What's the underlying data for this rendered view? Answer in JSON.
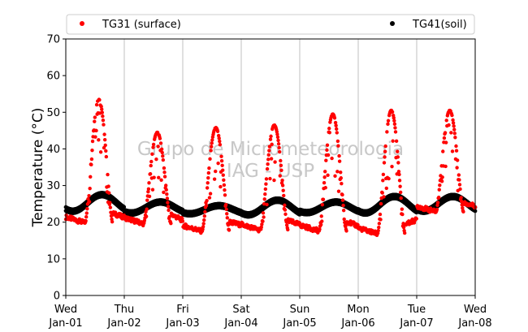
{
  "chart_data": {
    "type": "scatter",
    "title": "",
    "xlabel": "",
    "ylabel": "Temperature (°C)",
    "ylim": [
      0,
      70
    ],
    "yticks": [
      0,
      10,
      20,
      30,
      40,
      50,
      60,
      70
    ],
    "xlim": [
      "2001-01-01",
      "2001-01-08"
    ],
    "xticks": [
      {
        "day": "Wed",
        "date": "Jan-01"
      },
      {
        "day": "Thu",
        "date": "Jan-02"
      },
      {
        "day": "Fri",
        "date": "Jan-03"
      },
      {
        "day": "Sat",
        "date": "Jan-04"
      },
      {
        "day": "Sun",
        "date": "Jan-05"
      },
      {
        "day": "Mon",
        "date": "Jan-06"
      },
      {
        "day": "Tue",
        "date": "Jan-07"
      },
      {
        "day": "Wed",
        "date": "Jan-08"
      }
    ],
    "grid": "vertical",
    "legend_position": "top",
    "watermark": [
      "Grupo de Micrometeorologia",
      "IAG - USP"
    ],
    "series": [
      {
        "name": "TG31 (surface)",
        "color": "#ff0000",
        "daily": [
          {
            "date": "2001-01-01",
            "min": 19.8,
            "max": 53.5
          },
          {
            "date": "2001-01-02",
            "min": 19.6,
            "max": 44.5
          },
          {
            "date": "2001-01-03",
            "min": 17.5,
            "max": 45.8
          },
          {
            "date": "2001-01-04",
            "min": 17.8,
            "max": 46.5
          },
          {
            "date": "2001-01-05",
            "min": 17.6,
            "max": 49.5
          },
          {
            "date": "2001-01-06",
            "min": 16.8,
            "max": 50.5
          },
          {
            "date": "2001-01-07",
            "min": 22.8,
            "max": 50.5
          }
        ]
      },
      {
        "name": "TG41(soil)",
        "color": "#000000",
        "daily": [
          {
            "date": "2001-01-01",
            "min": 23.0,
            "max": 27.5
          },
          {
            "date": "2001-01-02",
            "min": 22.5,
            "max": 25.5
          },
          {
            "date": "2001-01-03",
            "min": 22.3,
            "max": 24.5
          },
          {
            "date": "2001-01-04",
            "min": 22.0,
            "max": 26.0
          },
          {
            "date": "2001-01-05",
            "min": 22.6,
            "max": 25.5
          },
          {
            "date": "2001-01-06",
            "min": 22.5,
            "max": 27.0
          },
          {
            "date": "2001-01-07",
            "min": 23.0,
            "max": 27.0
          }
        ]
      }
    ]
  }
}
